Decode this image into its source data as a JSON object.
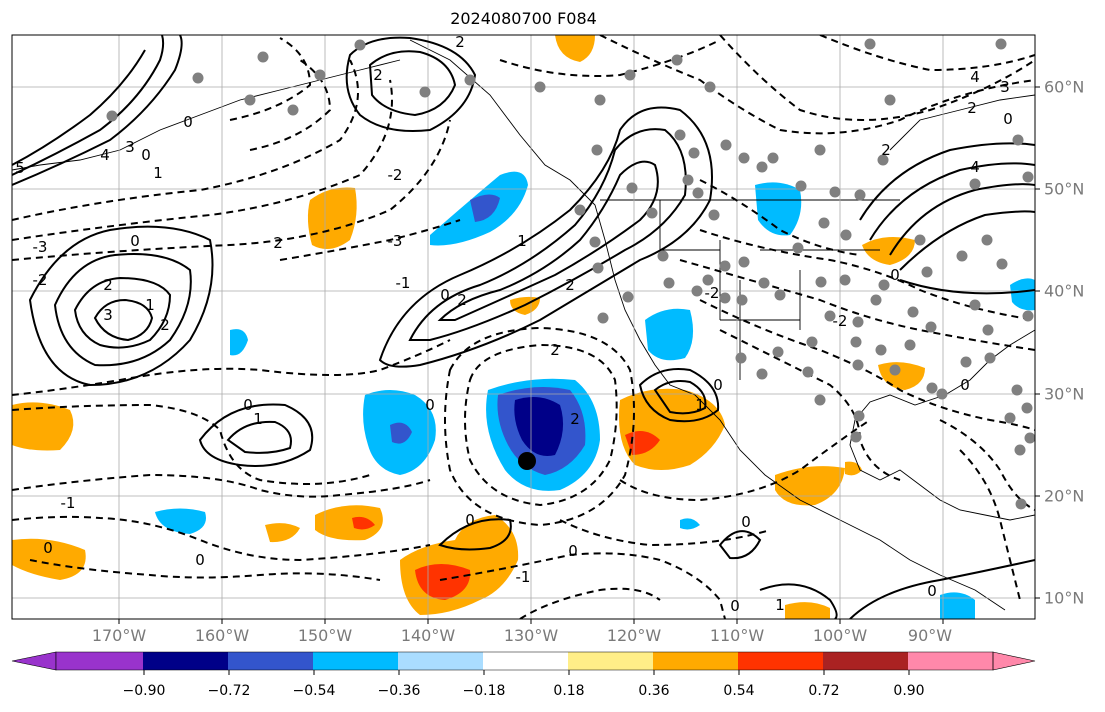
{
  "title": "2024080700 F084",
  "lon_labels": [
    "170°W",
    "160°W",
    "150°W",
    "140°W",
    "130°W",
    "120°W",
    "110°W",
    "100°W",
    "90°W"
  ],
  "lat_labels": [
    "60°N",
    "50°N",
    "40°N",
    "30°N",
    "20°N",
    "10°N"
  ],
  "colorbar": {
    "ticks": [
      "−0.90",
      "−0.72",
      "−0.54",
      "−0.36",
      "−0.18",
      "0.18",
      "0.36",
      "0.54",
      "0.72",
      "0.90"
    ],
    "colors": [
      "#9933cc",
      "#000088",
      "#3355cc",
      "#00bbff",
      "#aaddff",
      "#ffffff",
      "#ffee88",
      "#ffaa00",
      "#ff3300",
      "#aa2222",
      "#ff88aa"
    ]
  },
  "contour_labels": [
    "0",
    "1",
    "2",
    "3",
    "4",
    "5",
    "-1",
    "-2",
    "-3"
  ]
}
